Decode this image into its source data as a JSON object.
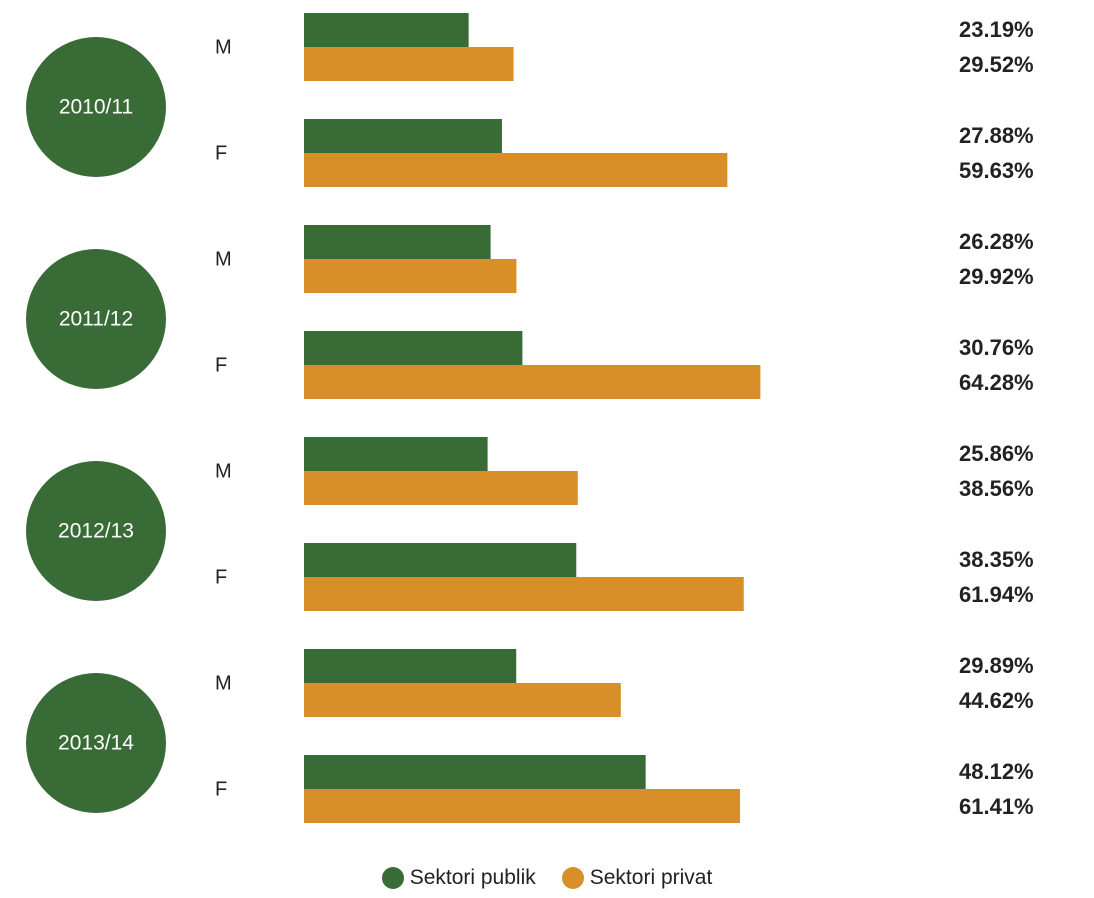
{
  "chart_data": {
    "type": "bar",
    "orientation": "horizontal",
    "groups": [
      {
        "year": "2010/11",
        "rows": [
          {
            "gender": "M",
            "public": 23.19,
            "private": 29.52,
            "public_label": "23.19%",
            "private_label": "29.52%"
          },
          {
            "gender": "F",
            "public": 27.88,
            "private": 59.63,
            "public_label": "27.88%",
            "private_label": "59.63%"
          }
        ]
      },
      {
        "year": "2011/12",
        "rows": [
          {
            "gender": "M",
            "public": 26.28,
            "private": 29.92,
            "public_label": "26.28%",
            "private_label": "29.92%"
          },
          {
            "gender": "F",
            "public": 30.76,
            "private": 64.28,
            "public_label": "30.76%",
            "private_label": "64.28%"
          }
        ]
      },
      {
        "year": "2012/13",
        "rows": [
          {
            "gender": "M",
            "public": 25.86,
            "private": 38.56,
            "public_label": "25.86%",
            "private_label": "38.56%"
          },
          {
            "gender": "F",
            "public": 38.35,
            "private": 61.94,
            "public_label": "38.35%",
            "private_label": "61.94%"
          }
        ]
      },
      {
        "year": "2013/14",
        "rows": [
          {
            "gender": "M",
            "public": 29.89,
            "private": 44.62,
            "public_label": "29.89%",
            "private_label": "44.62%"
          },
          {
            "gender": "F",
            "public": 48.12,
            "private": 61.41,
            "public_label": "48.12%",
            "private_label": "61.41%"
          }
        ]
      }
    ],
    "series": [
      {
        "key": "public",
        "name": "Sektori publik",
        "color": "#386b36"
      },
      {
        "key": "private",
        "name": "Sektori privat",
        "color": "#d88f2a"
      }
    ],
    "grid": false,
    "legend_position": "bottom-center"
  },
  "legend": {
    "public_label": "Sektori publik",
    "private_label": "Sektori privat"
  }
}
